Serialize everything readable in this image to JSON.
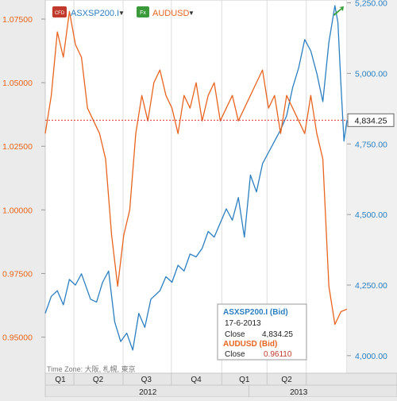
{
  "legend": [
    {
      "badge": "CFD",
      "name": "ASXSP200.I",
      "color": "#2a7fc1"
    },
    {
      "badge": "Fx",
      "name": "AUDUSD",
      "color": "#e8641e"
    }
  ],
  "chart_data": {
    "type": "line",
    "x_axis": {
      "quarters": [
        "Q1",
        "Q2",
        "Q3",
        "Q4",
        "Q1",
        "Q2"
      ],
      "years": [
        "2012",
        "2013"
      ],
      "time_zone_label": "Time Zone: 大阪, 札幌, 東京"
    },
    "left_axis": {
      "ticks": [
        "1.07500",
        "1.05000",
        "1.02500",
        "1.00000",
        "0.97500",
        "0.95000"
      ],
      "tick_values": [
        1.075,
        1.05,
        1.025,
        1.0,
        0.975,
        0.95
      ],
      "range": [
        0.9405,
        1.0825
      ],
      "color": "#e8641e"
    },
    "right_axis": {
      "ticks": [
        "5,250.00",
        "5,000.00",
        "4,750.00",
        "4,500.00",
        "4,250.00",
        "4,000.00"
      ],
      "tick_values": [
        5250,
        5000,
        4750,
        4500,
        4250,
        4000
      ],
      "range": [
        3980,
        5260
      ],
      "color": "#2a7fc1"
    },
    "current_value_label": "4,834.25",
    "current_value": 4834.25,
    "series": [
      {
        "name": "ASXSP200.I",
        "axis": "right",
        "color": "#2a7fc1",
        "x": [
          0,
          0.02,
          0.04,
          0.06,
          0.08,
          0.1,
          0.12,
          0.15,
          0.17,
          0.19,
          0.21,
          0.23,
          0.25,
          0.27,
          0.29,
          0.31,
          0.33,
          0.35,
          0.38,
          0.4,
          0.42,
          0.44,
          0.46,
          0.48,
          0.5,
          0.52,
          0.54,
          0.56,
          0.58,
          0.6,
          0.62,
          0.64,
          0.66,
          0.68,
          0.7,
          0.72,
          0.74,
          0.76,
          0.78,
          0.8,
          0.82,
          0.84,
          0.86,
          0.88,
          0.9,
          0.92,
          0.94,
          0.96,
          0.97,
          0.98,
          0.99,
          1.0
        ],
        "values": [
          4150,
          4210,
          4230,
          4180,
          4270,
          4250,
          4290,
          4200,
          4190,
          4260,
          4300,
          4120,
          4050,
          4080,
          4020,
          4150,
          4100,
          4200,
          4230,
          4280,
          4260,
          4320,
          4300,
          4360,
          4350,
          4380,
          4440,
          4420,
          4470,
          4520,
          4480,
          4560,
          4420,
          4640,
          4580,
          4680,
          4720,
          4760,
          4800,
          4850,
          4950,
          5020,
          5120,
          5080,
          5000,
          4900,
          5110,
          5240,
          5180,
          4960,
          4760,
          4834
        ]
      },
      {
        "name": "AUDUSD",
        "axis": "left",
        "color": "#e8641e",
        "x": [
          0,
          0.02,
          0.04,
          0.06,
          0.08,
          0.1,
          0.12,
          0.14,
          0.16,
          0.18,
          0.2,
          0.22,
          0.24,
          0.26,
          0.28,
          0.3,
          0.32,
          0.34,
          0.36,
          0.38,
          0.4,
          0.42,
          0.44,
          0.46,
          0.48,
          0.5,
          0.52,
          0.54,
          0.56,
          0.58,
          0.6,
          0.62,
          0.64,
          0.66,
          0.68,
          0.7,
          0.72,
          0.74,
          0.76,
          0.78,
          0.8,
          0.82,
          0.84,
          0.86,
          0.88,
          0.9,
          0.92,
          0.94,
          0.96,
          0.98,
          1.0
        ],
        "values": [
          1.03,
          1.045,
          1.07,
          1.06,
          1.078,
          1.065,
          1.06,
          1.04,
          1.035,
          1.03,
          1.02,
          0.99,
          0.97,
          0.99,
          1.0,
          1.03,
          1.045,
          1.035,
          1.05,
          1.055,
          1.045,
          1.04,
          1.03,
          1.045,
          1.04,
          1.05,
          1.035,
          1.045,
          1.05,
          1.035,
          1.04,
          1.045,
          1.035,
          1.04,
          1.045,
          1.05,
          1.055,
          1.04,
          1.045,
          1.03,
          1.045,
          1.04,
          1.035,
          1.03,
          1.045,
          1.03,
          1.02,
          0.97,
          0.955,
          0.96,
          0.961
        ]
      }
    ],
    "tooltip": {
      "series1_name": "ASXSP200.I (Bid)",
      "date": "17-6-2013",
      "series1_close_label": "Close",
      "series1_close_value": "4,834.25",
      "series2_name": "AUDUSD (Bid)",
      "series2_close_label": "Close",
      "series2_close_value": "0.96110"
    }
  }
}
